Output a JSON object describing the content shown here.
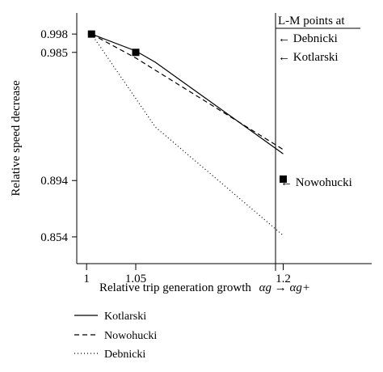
{
  "chart_data": {
    "type": "line",
    "title": "",
    "xlabel": "Relative trip generation growth",
    "xlabel_math": "αg → αg+",
    "ylabel": "Relative speed decrease",
    "xlim": [
      0.99,
      1.29
    ],
    "ylim": [
      0.835,
      1.013
    ],
    "x_ticks": [
      1,
      1.05,
      1.2
    ],
    "x_tick_labels": [
      "1",
      "1.05",
      "1.2"
    ],
    "y_ticks": [
      0.854,
      0.894,
      0.985,
      0.998
    ],
    "y_tick_labels": [
      "0.854",
      "0.894",
      "0.985",
      "0.998"
    ],
    "grid": false,
    "legend_position": "below",
    "series": [
      {
        "name": "Kotlarski",
        "style": "solid",
        "color": "#000000",
        "x": [
          1.005,
          1.05,
          1.07,
          1.2
        ],
        "y": [
          0.998,
          0.986,
          0.978,
          0.913
        ]
      },
      {
        "name": "Nowohucki",
        "style": "dashed",
        "color": "#000000",
        "x": [
          1.005,
          1.05,
          1.08,
          1.2
        ],
        "y": [
          0.998,
          0.981,
          0.968,
          0.916
        ]
      },
      {
        "name": "Debnicki",
        "style": "dotted",
        "color": "#000000",
        "x": [
          1.005,
          1.07,
          1.2
        ],
        "y": [
          0.998,
          0.932,
          0.855
        ]
      }
    ],
    "markers": [
      {
        "x": 1.005,
        "y": 0.998,
        "shape": "square"
      },
      {
        "x": 1.05,
        "y": 0.985,
        "shape": "square"
      },
      {
        "x": 1.2,
        "y": 0.895,
        "shape": "square"
      }
    ],
    "vline_x": 1.2,
    "annotations": {
      "header": "L-M points at",
      "debnicki": "← Debnicki",
      "kotlarski": "← Kotlarski",
      "nowohucki": "← Nowohucki"
    }
  }
}
